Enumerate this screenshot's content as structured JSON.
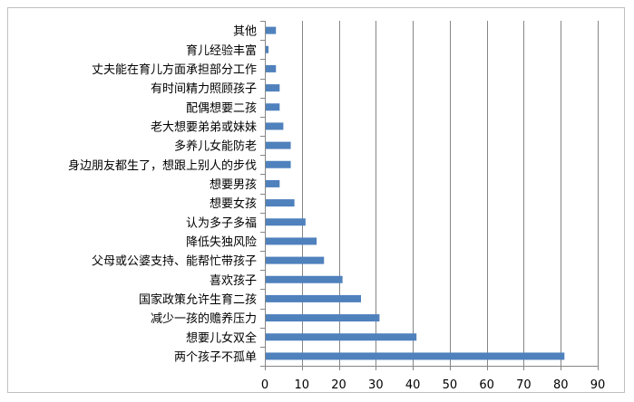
{
  "chart_data": {
    "type": "bar",
    "orientation": "horizontal",
    "title": "",
    "xlabel": "",
    "ylabel": "",
    "categories": [
      "两个孩子不孤单",
      "想要儿女双全",
      "减少一孩的赡养压力",
      "国家政策允许生育二孩",
      "喜欢孩子",
      "父母或公婆支持、能帮忙带孩子",
      "降低失独风险",
      "认为多子多福",
      "想要女孩",
      "想要男孩",
      "身边朋友都生了，想跟上别人的步伐",
      "多养儿女能防老",
      "老大想要弟弟或妹妹",
      "配偶想要二孩",
      "有时间精力照顾孩子",
      "丈夫能在育儿方面承担部分工作",
      "育儿经验丰富",
      "其他"
    ],
    "values": [
      81,
      41,
      31,
      26,
      21,
      16,
      14,
      11,
      8,
      4,
      7,
      7,
      5,
      4,
      4,
      3,
      1,
      3
    ],
    "xlim": [
      0,
      90
    ],
    "xticks": [
      "0",
      "10",
      "20",
      "30",
      "40",
      "50",
      "60",
      "70",
      "80",
      "90"
    ],
    "grid": "vertical",
    "legend": "none",
    "bar_color": "#4f81bd",
    "grid_color": "#868686"
  }
}
